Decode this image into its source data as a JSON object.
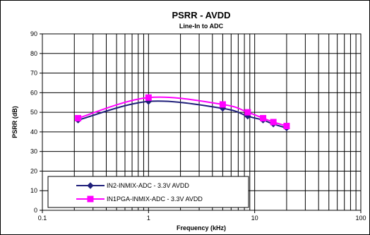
{
  "chart_data": {
    "type": "line",
    "title": "PSRR - AVDD",
    "subtitle": "Line-In to ADC",
    "xlabel": "Frequency (kHz)",
    "ylabel": "PSRR (dB)",
    "xscale": "log",
    "xlim": [
      0.1,
      100
    ],
    "ylim": [
      0,
      90
    ],
    "x_ticks": [
      "0.1",
      "1",
      "10",
      "100"
    ],
    "y_ticks": [
      "0",
      "10",
      "20",
      "30",
      "40",
      "50",
      "60",
      "70",
      "80",
      "90"
    ],
    "grid": "on (vertical log grid, horizontal major)",
    "legend_position": "bottom-left",
    "series": [
      {
        "name": "IN2-INMIX-ADC - 3.3V AVDD",
        "color": "#1f1f7a",
        "marker": "diamond",
        "x": [
          0.217,
          1.0,
          5.0,
          8.6,
          12.0,
          15.0,
          20.0
        ],
        "y": [
          46,
          55.5,
          52,
          48,
          46,
          44,
          42
        ]
      },
      {
        "name": "IN1PGA-INMIX-ADC - 3.3V AVDD",
        "color": "#ff00ff",
        "marker": "square",
        "x": [
          0.217,
          1.0,
          5.0,
          8.6,
          12.0,
          15.0,
          20.0
        ],
        "y": [
          47,
          57.5,
          54,
          50,
          47,
          45,
          43
        ]
      }
    ]
  }
}
